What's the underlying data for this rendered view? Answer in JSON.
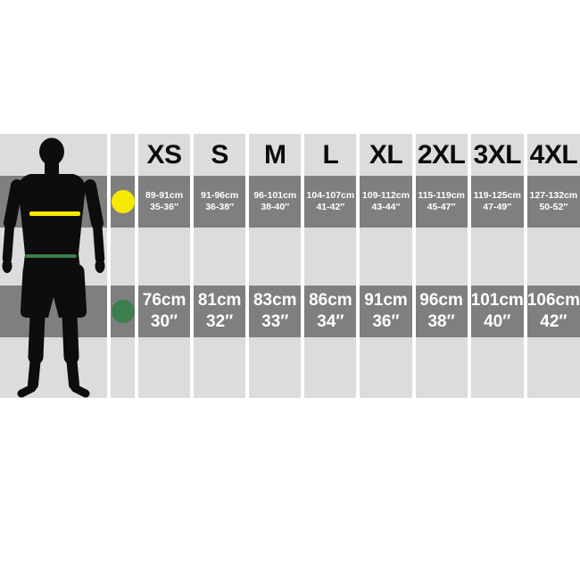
{
  "colors": {
    "cell_light": "#dcdcdc",
    "cell_dark": "#7f7f7f",
    "silhouette": "#0d0d0d",
    "chest_marker_yellow": "#f6e900",
    "waist_marker_green": "#3c7f4c",
    "measure_text": "#ffffff",
    "header_text": "#0b0b0b"
  },
  "table": {
    "sizes": [
      "XS",
      "S",
      "M",
      "L",
      "XL",
      "2XL",
      "3XL",
      "4XL"
    ],
    "chest": {
      "marker": "yellow-dot",
      "cells": [
        {
          "cm": "89-91cm",
          "inch": "35-36″"
        },
        {
          "cm": "91-96cm",
          "inch": "36-38″"
        },
        {
          "cm": "96-101cm",
          "inch": "38-40″"
        },
        {
          "cm": "104-107cm",
          "inch": "41-42″"
        },
        {
          "cm": "109-112cm",
          "inch": "43-44″"
        },
        {
          "cm": "115-119cm",
          "inch": "45-47″"
        },
        {
          "cm": "119-125cm",
          "inch": "47-49″"
        },
        {
          "cm": "127-132cm",
          "inch": "50-52″"
        }
      ]
    },
    "waist": {
      "marker": "green-dot",
      "cells": [
        {
          "cm": "76cm",
          "inch": "30″"
        },
        {
          "cm": "81cm",
          "inch": "32″"
        },
        {
          "cm": "83cm",
          "inch": "33″"
        },
        {
          "cm": "86cm",
          "inch": "34″"
        },
        {
          "cm": "91cm",
          "inch": "36″"
        },
        {
          "cm": "96cm",
          "inch": "38″"
        },
        {
          "cm": "101cm",
          "inch": "40″"
        },
        {
          "cm": "106cm",
          "inch": "42″"
        }
      ]
    }
  },
  "chart_data": {
    "type": "table",
    "title": "Garment size chart with body measurement markers",
    "columns": [
      "XS",
      "S",
      "M",
      "L",
      "XL",
      "2XL",
      "3XL",
      "4XL"
    ],
    "rows": [
      {
        "label": "chest (yellow marker)",
        "values_cm": [
          "89-91",
          "91-96",
          "96-101",
          "104-107",
          "109-112",
          "115-119",
          "119-125",
          "127-132"
        ],
        "values_in": [
          "35-36",
          "36-38",
          "38-40",
          "41-42",
          "43-44",
          "45-47",
          "47-49",
          "50-52"
        ]
      },
      {
        "label": "waist (green marker)",
        "values_cm": [
          "76",
          "81",
          "83",
          "86",
          "91",
          "96",
          "101",
          "106"
        ],
        "values_in": [
          "30",
          "32",
          "33",
          "34",
          "36",
          "38",
          "40",
          "42"
        ]
      }
    ],
    "legend": [
      {
        "marker": "yellow circle",
        "meaning": "chest measurement line on figure"
      },
      {
        "marker": "green circle",
        "meaning": "waist measurement line on figure"
      }
    ]
  }
}
